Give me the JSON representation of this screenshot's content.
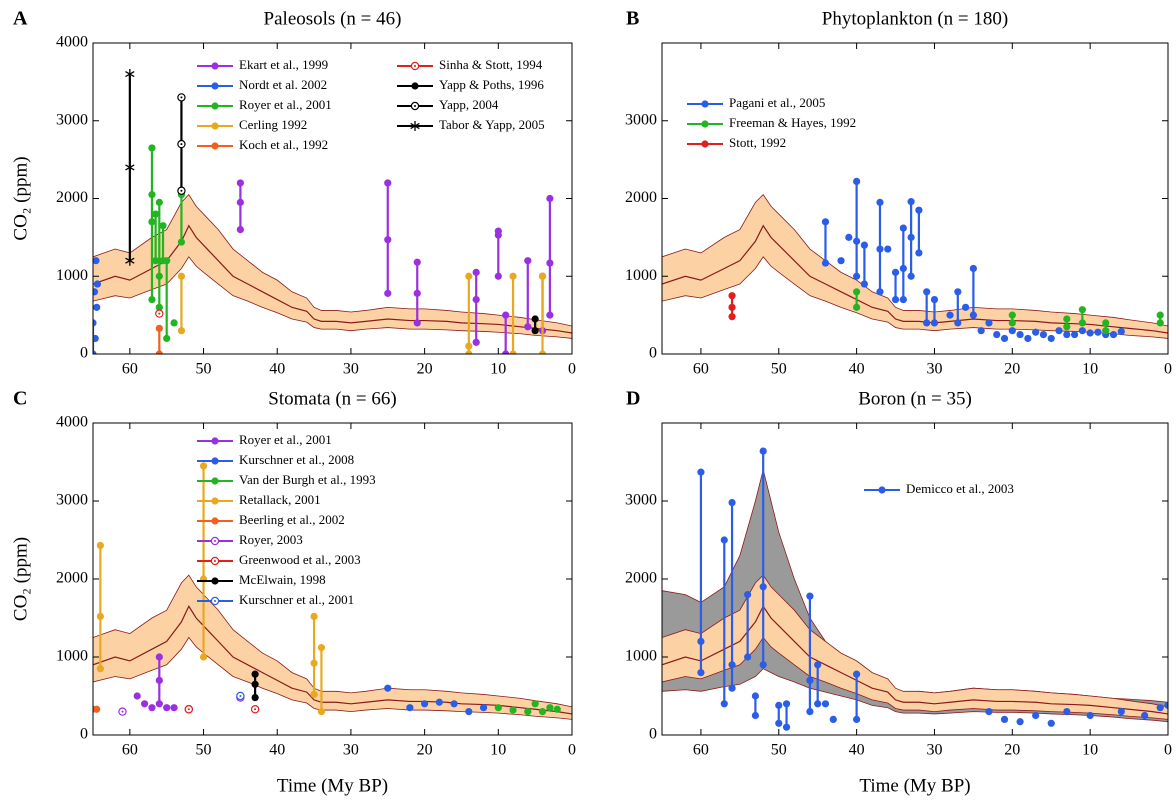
{
  "model": {
    "x": [
      65,
      62,
      60,
      57,
      55,
      53,
      52,
      51,
      50,
      48,
      46,
      44,
      42,
      40,
      38,
      36,
      35,
      34,
      32,
      30,
      28,
      25,
      22,
      20,
      17,
      15,
      12,
      10,
      7,
      5,
      2,
      0
    ],
    "values": [
      900,
      1000,
      950,
      1100,
      1200,
      1450,
      1650,
      1500,
      1400,
      1200,
      1000,
      900,
      800,
      700,
      600,
      550,
      450,
      420,
      420,
      400,
      420,
      450,
      430,
      430,
      420,
      400,
      390,
      380,
      350,
      330,
      300,
      270
    ],
    "lower": [
      680,
      750,
      720,
      830,
      900,
      1100,
      1250,
      1130,
      1050,
      900,
      750,
      680,
      600,
      530,
      450,
      410,
      340,
      320,
      320,
      300,
      320,
      340,
      320,
      320,
      310,
      300,
      290,
      280,
      260,
      240,
      220,
      200
    ],
    "upper": [
      1250,
      1350,
      1300,
      1500,
      1600,
      1950,
      2050,
      1900,
      1800,
      1600,
      1350,
      1200,
      1050,
      950,
      800,
      720,
      600,
      560,
      560,
      540,
      560,
      600,
      580,
      580,
      560,
      540,
      520,
      500,
      470,
      440,
      400,
      360
    ],
    "color": "#fcd2a4",
    "line_color": "#8b1a1a"
  },
  "chart_data": [
    {
      "type": "scatter",
      "panel": "A",
      "title": "Paleosols (n = 46)",
      "ylabel": "CO₂ (ppm)",
      "xlim": [
        65,
        0
      ],
      "xticks": [
        60,
        50,
        40,
        30,
        20,
        10,
        0
      ],
      "ylim": [
        0,
        4000
      ],
      "yticks": [
        0,
        1000,
        2000,
        3000,
        4000
      ],
      "series": [
        {
          "name": "Ekart et al., 1999",
          "color": "#9b30e0",
          "marker": "circle",
          "x": [
            45,
            45,
            45,
            25,
            25,
            25,
            21,
            21,
            21,
            13,
            13,
            13,
            10,
            10,
            10,
            9,
            9,
            6,
            6,
            4,
            4,
            3,
            3,
            3
          ],
          "values": [
            2200,
            1950,
            1600,
            2200,
            1470,
            780,
            1180,
            780,
            400,
            1050,
            700,
            150,
            1580,
            1530,
            1000,
            500,
            0,
            1200,
            350,
            1000,
            300,
            2000,
            1170,
            500
          ]
        },
        {
          "name": "Nordt et al. 2002",
          "color": "#2a5de8",
          "marker": "circle",
          "x": [
            65,
            65,
            64.8,
            64.6,
            64.5,
            64.7,
            64.4
          ],
          "values": [
            0,
            400,
            800,
            1200,
            600,
            200,
            900
          ]
        },
        {
          "name": "Royer et al., 2001",
          "color": "#22b522",
          "marker": "circle",
          "x": [
            57,
            57,
            57,
            57,
            56.5,
            56.5,
            56,
            56,
            56,
            55.5,
            55.5,
            55,
            55,
            54,
            53,
            53
          ],
          "values": [
            2650,
            2050,
            1700,
            700,
            1800,
            1200,
            1950,
            1000,
            600,
            1650,
            1200,
            1200,
            200,
            400,
            2050,
            1440
          ]
        },
        {
          "name": "Cerling 1992",
          "color": "#e8a820",
          "marker": "circle",
          "x": [
            14,
            14,
            14,
            8,
            8,
            4,
            4,
            53,
            53
          ],
          "values": [
            1000,
            100,
            0,
            1000,
            0,
            1000,
            0,
            1000,
            300
          ]
        },
        {
          "name": "Koch et al., 1992",
          "color": "#f06020",
          "marker": "circle",
          "x": [
            56,
            56
          ],
          "values": [
            330,
            0
          ]
        },
        {
          "name": "Sinha & Stott, 1994",
          "color": "#e02020",
          "marker": "open",
          "x": [
            56
          ],
          "values": [
            520
          ]
        },
        {
          "name": "Yapp & Poths, 1996",
          "color": "#000000",
          "marker": "circle",
          "x": [
            5,
            5
          ],
          "values": [
            450,
            300
          ]
        },
        {
          "name": "Yapp, 2004",
          "color": "#000000",
          "marker": "open",
          "x": [
            53,
            53,
            53
          ],
          "values": [
            3300,
            2700,
            2100
          ]
        },
        {
          "name": "Tabor & Yapp, 2005",
          "color": "#000000",
          "marker": "star",
          "x": [
            60,
            60,
            60
          ],
          "values": [
            3600,
            2400,
            1200
          ]
        }
      ]
    },
    {
      "type": "scatter",
      "panel": "B",
      "title": "Phytoplankton (n = 180)",
      "xlim": [
        65,
        0
      ],
      "xticks": [
        60,
        50,
        40,
        30,
        20,
        10,
        0
      ],
      "ylim": [
        0,
        4000
      ],
      "yticks": [
        0,
        1000,
        2000,
        3000
      ],
      "series": [
        {
          "name": "Pagani et al., 2005",
          "color": "#2a5de8",
          "marker": "circle",
          "x": [
            44,
            44,
            42,
            41,
            40,
            40,
            40,
            39,
            39,
            37,
            37,
            37,
            36,
            35,
            35,
            34,
            34,
            34,
            33,
            33,
            33,
            32,
            32,
            31,
            31,
            30,
            30,
            28,
            27,
            27,
            26,
            25,
            25,
            24,
            23,
            22,
            21,
            20,
            19,
            18,
            17,
            16,
            15,
            14,
            13,
            12,
            11,
            10,
            9,
            8,
            7,
            6
          ],
          "values": [
            1700,
            1170,
            1200,
            1500,
            2220,
            1450,
            1000,
            1400,
            900,
            1950,
            1350,
            800,
            1350,
            1050,
            700,
            1620,
            1100,
            700,
            1960,
            1500,
            1000,
            1850,
            1300,
            800,
            400,
            700,
            400,
            500,
            800,
            400,
            600,
            1100,
            500,
            300,
            400,
            250,
            200,
            300,
            250,
            200,
            280,
            250,
            200,
            300,
            250,
            250,
            300,
            270,
            280,
            250,
            250,
            290
          ]
        },
        {
          "name": "Freeman & Hayes, 1992",
          "color": "#22b522",
          "marker": "circle",
          "x": [
            40,
            40,
            20,
            20,
            13,
            13,
            11,
            11,
            8,
            8,
            1,
            1
          ],
          "values": [
            800,
            600,
            500,
            400,
            450,
            350,
            570,
            400,
            400,
            300,
            500,
            400
          ]
        },
        {
          "name": "Stott, 1992",
          "color": "#e02020",
          "marker": "circle",
          "x": [
            56,
            56,
            56
          ],
          "values": [
            750,
            600,
            480
          ]
        }
      ]
    },
    {
      "type": "scatter",
      "panel": "C",
      "title": "Stomata (n = 66)",
      "ylabel": "CO₂ (ppm)",
      "xlabel": "Time (My BP)",
      "xlim": [
        65,
        0
      ],
      "xticks": [
        60,
        50,
        40,
        30,
        20,
        10,
        0
      ],
      "ylim": [
        0,
        4000
      ],
      "yticks": [
        0,
        1000,
        2000,
        3000,
        4000
      ],
      "series": [
        {
          "name": "Royer et al., 2001",
          "color": "#9b30e0",
          "marker": "circle",
          "x": [
            59,
            58,
            57,
            56,
            56,
            56,
            55,
            54
          ],
          "values": [
            500,
            400,
            350,
            1000,
            700,
            400,
            350,
            350
          ]
        },
        {
          "name": "Kurschner et al., 2008",
          "color": "#2a5de8",
          "marker": "circle",
          "x": [
            25,
            22,
            20,
            18,
            16,
            14,
            12
          ],
          "values": [
            600,
            350,
            400,
            420,
            400,
            300,
            350
          ]
        },
        {
          "name": "Van der Burgh et al., 1993",
          "color": "#22b522",
          "marker": "circle",
          "x": [
            10,
            8,
            6,
            5,
            4,
            3,
            2
          ],
          "values": [
            350,
            320,
            300,
            400,
            300,
            350,
            330
          ]
        },
        {
          "name": "Retallack, 2001",
          "color": "#e8a820",
          "marker": "circle",
          "x": [
            64,
            64,
            64,
            50,
            50,
            50,
            35,
            35,
            35,
            34,
            34
          ],
          "values": [
            2430,
            1520,
            850,
            3450,
            2000,
            1000,
            1520,
            920,
            520,
            1120,
            300
          ]
        },
        {
          "name": "Beerling et al., 2002",
          "color": "#f06020",
          "marker": "circle",
          "x": [
            65,
            64.5
          ],
          "values": [
            330,
            330
          ]
        },
        {
          "name": "Royer, 2003",
          "color": "#9b30e0",
          "marker": "open",
          "x": [
            61,
            52,
            45
          ],
          "values": [
            300,
            330,
            480
          ]
        },
        {
          "name": "Greenwood et al., 2003",
          "color": "#e02020",
          "marker": "open",
          "x": [
            52,
            43
          ],
          "values": [
            330,
            330
          ]
        },
        {
          "name": "McElwain, 1998",
          "color": "#000000",
          "marker": "circle",
          "x": [
            43,
            43,
            43
          ],
          "values": [
            780,
            650,
            480
          ]
        },
        {
          "name": "Kurschner et al., 2001",
          "color": "#2a5de8",
          "marker": "open",
          "x": [
            45
          ],
          "values": [
            500
          ]
        }
      ]
    },
    {
      "type": "scatter",
      "panel": "D",
      "title": "Boron (n = 35)",
      "xlabel": "Time (My BP)",
      "xlim": [
        65,
        0
      ],
      "xticks": [
        60,
        50,
        40,
        30,
        20,
        10,
        0
      ],
      "ylim": [
        0,
        4000
      ],
      "yticks": [
        0,
        1000,
        2000,
        3000
      ],
      "outer_band": {
        "color": "#9a9a9a",
        "lower": [
          560,
          580,
          560,
          620,
          650,
          750,
          850,
          800,
          750,
          680,
          600,
          550,
          500,
          450,
          380,
          350,
          300,
          280,
          280,
          270,
          280,
          300,
          290,
          290,
          280,
          270,
          260,
          250,
          230,
          210,
          190,
          170
        ],
        "upper": [
          1850,
          1800,
          1700,
          1900,
          2300,
          3000,
          3400,
          3000,
          2600,
          2000,
          1500,
          1200,
          1000,
          850,
          700,
          650,
          560,
          540,
          560,
          540,
          560,
          600,
          580,
          580,
          560,
          540,
          520,
          500,
          470,
          460,
          440,
          420
        ]
      },
      "series": [
        {
          "name": "Demicco et al., 2003",
          "color": "#2a5de8",
          "marker": "circle",
          "x": [
            60,
            60,
            60,
            57,
            57,
            56,
            56,
            56,
            54,
            54,
            53,
            53,
            52,
            52,
            52,
            50,
            50,
            49,
            49,
            46,
            46,
            46,
            45,
            45,
            44,
            43,
            40,
            40,
            23,
            21,
            19,
            17,
            15,
            13,
            10,
            6,
            3,
            1,
            0
          ],
          "values": [
            3370,
            1200,
            800,
            2500,
            400,
            2980,
            900,
            600,
            1800,
            1000,
            500,
            250,
            3640,
            1900,
            900,
            380,
            150,
            400,
            100,
            1780,
            700,
            300,
            900,
            400,
            400,
            200,
            780,
            200,
            300,
            200,
            170,
            250,
            150,
            300,
            250,
            300,
            250,
            350,
            380
          ]
        }
      ]
    }
  ]
}
